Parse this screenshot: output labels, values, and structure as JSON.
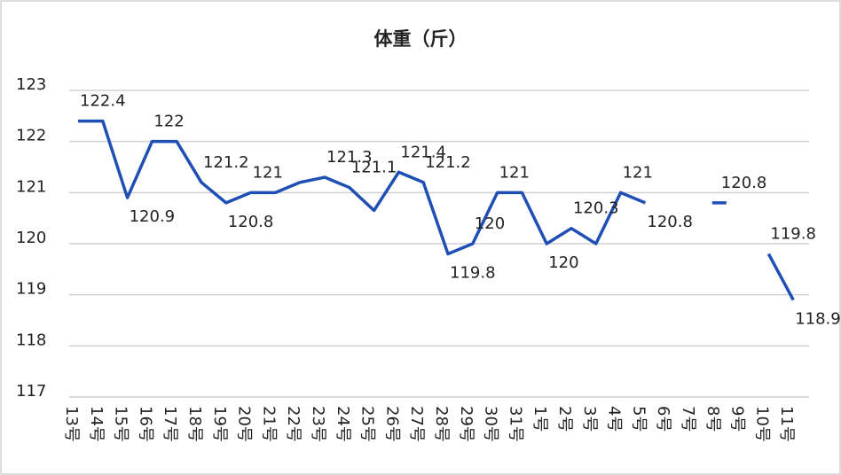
{
  "chart_data": {
    "type": "line",
    "title": "体重（斤）",
    "categories": [
      "13号",
      "14号",
      "15号",
      "16号",
      "17号",
      "18号",
      "19号",
      "20号",
      "21号",
      "22号",
      "23号",
      "24号",
      "25号",
      "26号",
      "27号",
      "28号",
      "29号",
      "30号",
      "31号",
      "1号",
      "2号",
      "3号",
      "4号",
      "5号",
      "6号",
      "7号",
      "8号",
      "9号",
      "10号",
      "11号"
    ],
    "values": [
      122.4,
      122.4,
      120.9,
      122,
      122,
      121.2,
      120.8,
      121,
      121,
      121.2,
      121.3,
      121.1,
      120.65,
      121.4,
      121.2,
      119.8,
      120,
      121,
      121,
      120,
      120.3,
      120,
      121,
      120.8,
      null,
      null,
      120.8,
      null,
      119.8,
      118.9
    ],
    "value_labels": [
      "122.4",
      null,
      "120.9",
      "122",
      null,
      "121.2",
      "120.8",
      "121",
      null,
      null,
      "121.3",
      "121.1",
      null,
      "121.4",
      "121.2",
      "119.8",
      "120",
      "121",
      null,
      "120",
      "120.3",
      null,
      "121",
      "120.8",
      null,
      null,
      "120.8",
      null,
      "119.8",
      "118.9"
    ],
    "color": "#1f4fb5",
    "ylim": [
      117,
      123
    ],
    "yticks": [
      117,
      118,
      119,
      120,
      121,
      122,
      123
    ],
    "grid": true
  }
}
